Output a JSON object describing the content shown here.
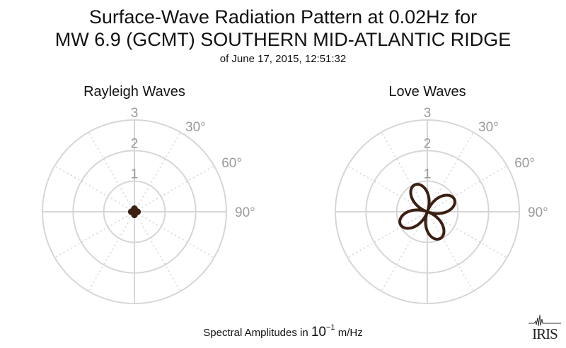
{
  "title_line1": "Surface-Wave Radiation Pattern at 0.02Hz for",
  "title_line2": "MW 6.9 (GCMT) SOUTHERN MID-ATLANTIC RIDGE",
  "subtitle": "of June 17, 2015, 12:51:32",
  "footer": {
    "prefix": "Spectral Amplitudes in ",
    "base": "10",
    "exponent": "−1",
    "unit": " m/Hz"
  },
  "logo_text": "IRIS",
  "colors": {
    "grid": "#d6d6d6",
    "tick_label": "#9a9a9a",
    "curve": "#3b1f12"
  },
  "chart_data": [
    {
      "type": "polar",
      "title": "Rayleigh Waves",
      "radial_ticks": [
        "1",
        "2",
        "3"
      ],
      "radial_range": [
        0,
        3
      ],
      "angle_ticks": [
        "30°",
        "60°",
        "90°"
      ],
      "grid": true,
      "pattern": {
        "amplitude": 0.12,
        "lobes": 4,
        "rotation_deg": 45
      }
    },
    {
      "type": "polar",
      "title": "Love Waves",
      "radial_ticks": [
        "1",
        "2",
        "3"
      ],
      "radial_range": [
        0,
        3
      ],
      "angle_ticks": [
        "30°",
        "60°",
        "90°"
      ],
      "grid": true,
      "pattern": {
        "amplitude": 0.95,
        "lobes": 4,
        "rotation_deg": 20
      }
    }
  ]
}
